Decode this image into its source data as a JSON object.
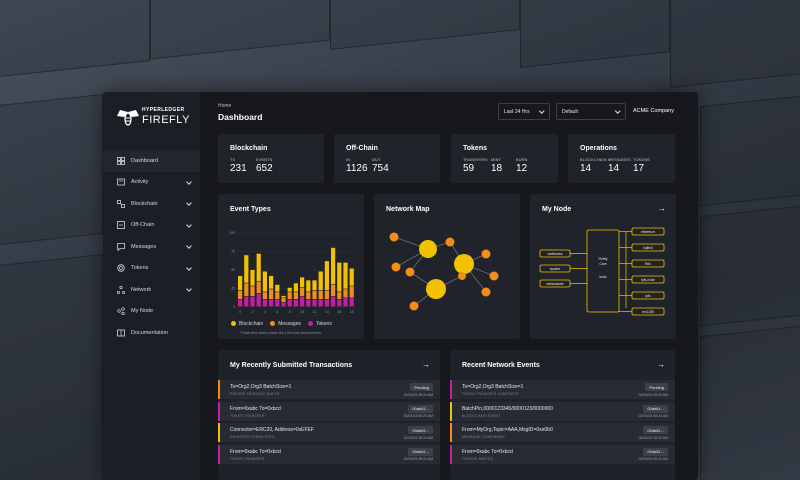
{
  "app": {
    "logo_top": "HYPERLEDGER",
    "logo_bottom": "FIREFLY",
    "breadcrumb": "Home",
    "page_title": "Dashboard",
    "time_range": "Last 24 Hrs",
    "namespace": "Default",
    "company": "ACME Company"
  },
  "sidebar": {
    "items": [
      {
        "label": "Dashboard",
        "icon": "dashboard-icon",
        "expandable": false
      },
      {
        "label": "Activity",
        "icon": "activity-icon",
        "expandable": true
      },
      {
        "label": "Blockchain",
        "icon": "blockchain-icon",
        "expandable": true
      },
      {
        "label": "Off-Chain",
        "icon": "offchain-icon",
        "expandable": true
      },
      {
        "label": "Messages",
        "icon": "messages-icon",
        "expandable": true
      },
      {
        "label": "Tokens",
        "icon": "tokens-icon",
        "expandable": true
      },
      {
        "label": "Network",
        "icon": "network-icon",
        "expandable": true
      },
      {
        "label": "My Node",
        "icon": "node-icon",
        "expandable": false
      },
      {
        "label": "Documentation",
        "icon": "documentation-icon",
        "expandable": false
      }
    ]
  },
  "stats": [
    {
      "title": "Blockchain",
      "items": [
        {
          "label": "TX",
          "value": "231"
        },
        {
          "label": "EVENTS",
          "value": "652"
        }
      ]
    },
    {
      "title": "Off-Chain",
      "items": [
        {
          "label": "IN",
          "value": "1126"
        },
        {
          "label": "OUT",
          "value": "754"
        }
      ]
    },
    {
      "title": "Tokens",
      "items": [
        {
          "label": "TRANSFERS",
          "value": "59"
        },
        {
          "label": "MINT",
          "value": "18"
        },
        {
          "label": "BURN",
          "value": "12"
        }
      ]
    },
    {
      "title": "Operations",
      "items": [
        {
          "label": "BLOCKCHAIN",
          "value": "14"
        },
        {
          "label": "MESSAGES",
          "value": "14"
        },
        {
          "label": "TOKENS",
          "value": "17"
        }
      ]
    }
  ],
  "panels": {
    "event_types": "Event Types",
    "network_map": "Network Map",
    "my_node": "My Node",
    "legend_note": "* Each time block shows the 100 most recent events"
  },
  "colors": {
    "blockchain": "#f2c200",
    "messages": "#f28c1a",
    "tokens": "#c41ea1",
    "accent_yellow": "#f2c200"
  },
  "chart_data": {
    "type": "bar",
    "stacked": true,
    "categories": [
      "0",
      "1",
      "2",
      "3",
      "4",
      "5",
      "6",
      "7",
      "8",
      "9",
      "10",
      "11",
      "12",
      "13",
      "14",
      "15",
      "16",
      "17",
      "18"
    ],
    "xticks": [
      "0",
      "",
      "2",
      "",
      "4",
      "",
      "6",
      "",
      "8",
      "",
      "10",
      "",
      "12",
      "",
      "14",
      "",
      "16",
      "",
      "18"
    ],
    "series": [
      {
        "name": "Blockchain",
        "values": [
          20,
          38,
          22,
          38,
          28,
          18,
          10,
          3,
          6,
          12,
          14,
          16,
          14,
          26,
          40,
          50,
          40,
          36,
          24
        ]
      },
      {
        "name": "Messages",
        "values": [
          12,
          18,
          14,
          16,
          10,
          14,
          10,
          6,
          10,
          10,
          12,
          10,
          12,
          12,
          12,
          16,
          10,
          12,
          16
        ]
      },
      {
        "name": "Tokens",
        "values": [
          10,
          14,
          14,
          18,
          10,
          10,
          10,
          6,
          10,
          10,
          14,
          10,
          10,
          10,
          10,
          14,
          10,
          12,
          12
        ]
      }
    ],
    "yticks": [
      "100",
      "75",
      "50",
      "25",
      "0"
    ],
    "ylim": [
      0,
      100
    ],
    "legend_position": "bottom"
  },
  "node": {
    "core_label": "Firefly Core",
    "core_sub": "tools",
    "left_plugins": [
      "webhooks",
      "system",
      "websockets"
    ],
    "right_plugins": [
      "ethereum",
      "sqlite3",
      "ffdx",
      "ipfs-node",
      "ipfs",
      "erc1155"
    ]
  },
  "transactions": {
    "title": "My Recently Submitted Transactions",
    "rows": [
      {
        "line1": "To=Org2,Org3 BatchSize=1",
        "line2": "PRIVATE MESSAGE BATCH",
        "badge": "Pending",
        "time": "02/03/23 08:24 AM",
        "color": "#f28c1a"
      },
      {
        "line1": "From=0xabc To=0xbcd",
        "line2": "TOKEN TRANSFER",
        "badge": "00ab61...",
        "time": "02/03/23 08:24 AM",
        "color": "#c41ea1"
      },
      {
        "line1": "Connector=ERC20, Address=0xEFEF",
        "line2": "REGISTER TOKEN POOL",
        "badge": "00ab61...",
        "time": "02/03/23 08:24 AM",
        "color": "#f2c200"
      },
      {
        "line1": "From=0xabc To=0xbcd",
        "line2": "TOKEN TRANSFER",
        "badge": "00ab61...",
        "time": "02/03/23 08:24 AM",
        "color": "#c41ea1"
      }
    ]
  },
  "events": {
    "title": "Recent Network Events",
    "rows": [
      {
        "line1": "To=Org2,Org3 BatchSize=1",
        "line2": "TOKEN TRANSFER COMPLETE",
        "badge": "Pending",
        "time": "02/03/23 08:24 AM",
        "color": "#c41ea1"
      },
      {
        "line1": "BatchPin,0000123345/0000123/0000000",
        "line2": "BLOCKCHAIN EVENT",
        "badge": "00ab61...",
        "time": "02/03/23 08:24 AM",
        "color": "#f2c200"
      },
      {
        "line1": "From=MyOrg,Topic=AAA,MsgID=0xe0b0",
        "line2": "MESSAGE CONFIRMED",
        "badge": "00ab61...",
        "time": "02/03/23 08:24 AM",
        "color": "#f28c1a"
      },
      {
        "line1": "From=0xabc To=0xbcd",
        "line2": "TOKENS MINTED",
        "badge": "00ab61...",
        "time": "02/03/23 08:24 AM",
        "color": "#c41ea1"
      }
    ]
  }
}
